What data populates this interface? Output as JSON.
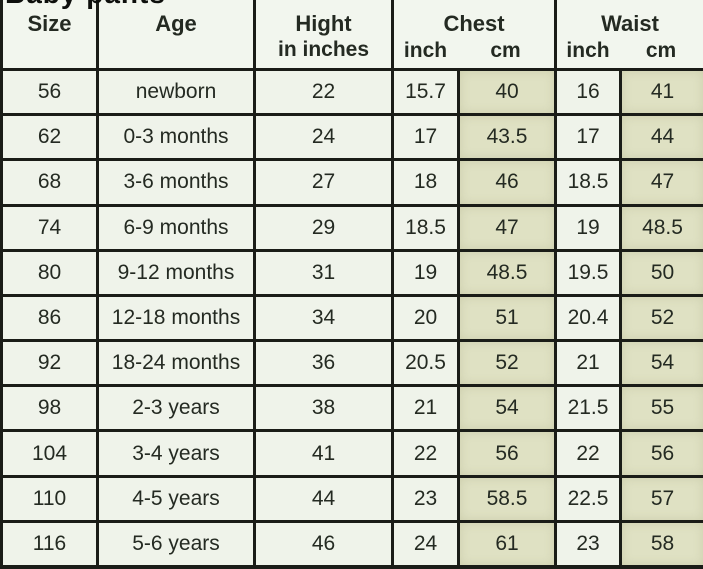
{
  "page": {
    "title": "Baby pants"
  },
  "colors": {
    "border": "#1a1c17",
    "cell_bg": "#eff3ea",
    "cm_cell_bg": "#dfe1c3",
    "header_bg": "#f2f6ee",
    "text": "#242a22"
  },
  "table": {
    "header": {
      "size": "Size",
      "age": "Age",
      "height_line1": "Hight",
      "height_line2": "in inches",
      "chest": "Chest",
      "chest_inch": "inch",
      "chest_cm": "cm",
      "waist": "Waist",
      "waist_inch": "inch",
      "waist_cm": "cm"
    },
    "rows": [
      {
        "size": "56",
        "age": "newborn",
        "height": "22",
        "chest_inch": "15.7",
        "chest_cm": "40",
        "waist_inch": "16",
        "waist_cm": "41"
      },
      {
        "size": "62",
        "age": "0-3 months",
        "height": "24",
        "chest_inch": "17",
        "chest_cm": "43.5",
        "waist_inch": "17",
        "waist_cm": "44"
      },
      {
        "size": "68",
        "age": "3-6 months",
        "height": "27",
        "chest_inch": "18",
        "chest_cm": "46",
        "waist_inch": "18.5",
        "waist_cm": "47"
      },
      {
        "size": "74",
        "age": "6-9 months",
        "height": "29",
        "chest_inch": "18.5",
        "chest_cm": "47",
        "waist_inch": "19",
        "waist_cm": "48.5"
      },
      {
        "size": "80",
        "age": "9-12 months",
        "height": "31",
        "chest_inch": "19",
        "chest_cm": "48.5",
        "waist_inch": "19.5",
        "waist_cm": "50"
      },
      {
        "size": "86",
        "age": "12-18 months",
        "height": "34",
        "chest_inch": "20",
        "chest_cm": "51",
        "waist_inch": "20.4",
        "waist_cm": "52"
      },
      {
        "size": "92",
        "age": "18-24 months",
        "height": "36",
        "chest_inch": "20.5",
        "chest_cm": "52",
        "waist_inch": "21",
        "waist_cm": "54"
      },
      {
        "size": "98",
        "age": "2-3 years",
        "height": "38",
        "chest_inch": "21",
        "chest_cm": "54",
        "waist_inch": "21.5",
        "waist_cm": "55"
      },
      {
        "size": "104",
        "age": "3-4 years",
        "height": "41",
        "chest_inch": "22",
        "chest_cm": "56",
        "waist_inch": "22",
        "waist_cm": "56"
      },
      {
        "size": "110",
        "age": "4-5 years",
        "height": "44",
        "chest_inch": "23",
        "chest_cm": "58.5",
        "waist_inch": "22.5",
        "waist_cm": "57"
      },
      {
        "size": "116",
        "age": "5-6 years",
        "height": "46",
        "chest_inch": "24",
        "chest_cm": "61",
        "waist_inch": "23",
        "waist_cm": "58"
      }
    ]
  },
  "chart_data": {
    "type": "table",
    "title": "Baby pants",
    "columns": [
      "Size",
      "Age",
      "Hight in inches",
      "Chest inch",
      "Chest cm",
      "Waist inch",
      "Waist cm"
    ],
    "rows": [
      [
        "56",
        "newborn",
        "22",
        "15.7",
        "40",
        "16",
        "41"
      ],
      [
        "62",
        "0-3 months",
        "24",
        "17",
        "43.5",
        "17",
        "44"
      ],
      [
        "68",
        "3-6 months",
        "27",
        "18",
        "46",
        "18.5",
        "47"
      ],
      [
        "74",
        "6-9 months",
        "29",
        "18.5",
        "47",
        "19",
        "48.5"
      ],
      [
        "80",
        "9-12 months",
        "31",
        "19",
        "48.5",
        "19.5",
        "50"
      ],
      [
        "86",
        "12-18 months",
        "34",
        "20",
        "51",
        "20.4",
        "52"
      ],
      [
        "92",
        "18-24 months",
        "36",
        "20.5",
        "52",
        "21",
        "54"
      ],
      [
        "98",
        "2-3 years",
        "38",
        "21",
        "54",
        "21.5",
        "55"
      ],
      [
        "104",
        "3-4 years",
        "41",
        "22",
        "56",
        "22",
        "56"
      ],
      [
        "110",
        "4-5 years",
        "44",
        "23",
        "58.5",
        "22.5",
        "57"
      ],
      [
        "116",
        "5-6 years",
        "46",
        "24",
        "61",
        "23",
        "58"
      ]
    ],
    "layout_hints": {
      "cm_columns_highlighted": true,
      "grid": true,
      "title_clipped_at_top": true
    }
  }
}
